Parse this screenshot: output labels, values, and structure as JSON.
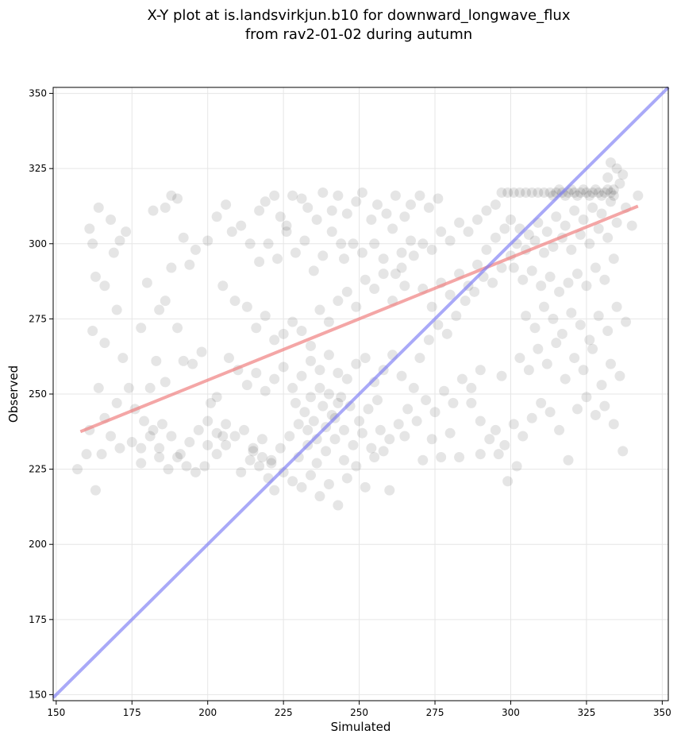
{
  "chart_data": {
    "type": "scatter",
    "title_line1": "X-Y plot at is.landsvirkjun.b10 for downward_longwave_flux",
    "title_line2": "from rav2-01-02 during autumn",
    "xlabel": "Simulated",
    "ylabel": "Observed",
    "xlim": [
      149,
      352
    ],
    "ylim": [
      148,
      352
    ],
    "xticks": [
      150,
      175,
      200,
      225,
      250,
      275,
      300,
      325,
      350
    ],
    "yticks": [
      150,
      175,
      200,
      225,
      250,
      275,
      300,
      325,
      350
    ],
    "grid": true,
    "point_color": "#000000",
    "regression_color": "#f08080",
    "identity_color": "#7b7bf5",
    "regression_line": {
      "x": [
        158,
        342
      ],
      "y": [
        237.5,
        312.5
      ]
    },
    "identity_line": {
      "x": [
        149,
        352
      ],
      "y": [
        149,
        352
      ]
    },
    "points": [
      [
        161,
        305
      ],
      [
        162,
        300
      ],
      [
        164,
        312
      ],
      [
        163,
        289
      ],
      [
        166,
        286
      ],
      [
        168,
        308
      ],
      [
        169,
        297
      ],
      [
        171,
        301
      ],
      [
        173,
        304
      ],
      [
        170,
        278
      ],
      [
        172,
        262
      ],
      [
        166,
        267
      ],
      [
        162,
        271
      ],
      [
        164,
        252
      ],
      [
        161,
        238
      ],
      [
        165,
        230
      ],
      [
        168,
        236
      ],
      [
        171,
        232
      ],
      [
        175,
        234
      ],
      [
        178,
        227
      ],
      [
        157,
        225
      ],
      [
        160,
        230
      ],
      [
        163,
        218
      ],
      [
        166,
        242
      ],
      [
        170,
        247
      ],
      [
        174,
        252
      ],
      [
        176,
        245
      ],
      [
        178,
        272
      ],
      [
        180,
        287
      ],
      [
        182,
        311
      ],
      [
        186,
        312
      ],
      [
        188,
        316
      ],
      [
        190,
        315
      ],
      [
        192,
        302
      ],
      [
        194,
        293
      ],
      [
        196,
        298
      ],
      [
        188,
        292
      ],
      [
        184,
        278
      ],
      [
        186,
        281
      ],
      [
        190,
        272
      ],
      [
        192,
        261
      ],
      [
        195,
        260
      ],
      [
        198,
        264
      ],
      [
        200,
        241
      ],
      [
        201,
        247
      ],
      [
        203,
        249
      ],
      [
        205,
        236
      ],
      [
        206,
        233
      ],
      [
        203,
        230
      ],
      [
        199,
        226
      ],
      [
        196,
        224
      ],
      [
        193,
        226
      ],
      [
        190,
        229
      ],
      [
        187,
        225
      ],
      [
        184,
        232
      ],
      [
        182,
        238
      ],
      [
        179,
        241
      ],
      [
        183,
        261
      ],
      [
        186,
        254
      ],
      [
        181,
        252
      ],
      [
        200,
        301
      ],
      [
        203,
        309
      ],
      [
        206,
        313
      ],
      [
        208,
        304
      ],
      [
        211,
        306
      ],
      [
        214,
        300
      ],
      [
        217,
        311
      ],
      [
        219,
        314
      ],
      [
        222,
        316
      ],
      [
        224,
        309
      ],
      [
        226,
        306
      ],
      [
        228,
        316
      ],
      [
        231,
        315
      ],
      [
        233,
        312
      ],
      [
        236,
        308
      ],
      [
        238,
        317
      ],
      [
        241,
        311
      ],
      [
        243,
        316
      ],
      [
        246,
        310
      ],
      [
        249,
        314
      ],
      [
        251,
        317
      ],
      [
        254,
        308
      ],
      [
        256,
        313
      ],
      [
        259,
        310
      ],
      [
        262,
        316
      ],
      [
        265,
        309
      ],
      [
        267,
        313
      ],
      [
        270,
        316
      ],
      [
        273,
        312
      ],
      [
        276,
        315
      ],
      [
        205,
        286
      ],
      [
        209,
        281
      ],
      [
        213,
        279
      ],
      [
        216,
        272
      ],
      [
        219,
        276
      ],
      [
        222,
        268
      ],
      [
        225,
        270
      ],
      [
        228,
        274
      ],
      [
        231,
        271
      ],
      [
        234,
        266
      ],
      [
        237,
        278
      ],
      [
        240,
        274
      ],
      [
        243,
        281
      ],
      [
        246,
        284
      ],
      [
        249,
        279
      ],
      [
        252,
        288
      ],
      [
        255,
        285
      ],
      [
        258,
        290
      ],
      [
        261,
        281
      ],
      [
        264,
        292
      ],
      [
        207,
        262
      ],
      [
        210,
        258
      ],
      [
        213,
        253
      ],
      [
        216,
        257
      ],
      [
        219,
        251
      ],
      [
        222,
        255
      ],
      [
        225,
        259
      ],
      [
        228,
        252
      ],
      [
        231,
        256
      ],
      [
        234,
        261
      ],
      [
        237,
        258
      ],
      [
        240,
        263
      ],
      [
        243,
        257
      ],
      [
        246,
        255
      ],
      [
        249,
        260
      ],
      [
        252,
        262
      ],
      [
        255,
        254
      ],
      [
        258,
        258
      ],
      [
        261,
        263
      ],
      [
        264,
        256
      ],
      [
        206,
        240
      ],
      [
        209,
        236
      ],
      [
        212,
        238
      ],
      [
        215,
        231
      ],
      [
        218,
        235
      ],
      [
        221,
        228
      ],
      [
        224,
        232
      ],
      [
        227,
        236
      ],
      [
        230,
        229
      ],
      [
        233,
        233
      ],
      [
        236,
        227
      ],
      [
        239,
        231
      ],
      [
        242,
        235
      ],
      [
        245,
        228
      ],
      [
        248,
        233
      ],
      [
        251,
        237
      ],
      [
        254,
        232
      ],
      [
        257,
        238
      ],
      [
        260,
        235
      ],
      [
        263,
        240
      ],
      [
        211,
        224
      ],
      [
        214,
        228
      ],
      [
        217,
        226
      ],
      [
        220,
        222
      ],
      [
        222,
        218
      ],
      [
        225,
        224
      ],
      [
        228,
        221
      ],
      [
        231,
        219
      ],
      [
        234,
        223
      ],
      [
        237,
        216
      ],
      [
        240,
        220
      ],
      [
        243,
        213
      ],
      [
        246,
        222
      ],
      [
        249,
        226
      ],
      [
        252,
        219
      ],
      [
        255,
        229
      ],
      [
        258,
        231
      ],
      [
        215,
        232
      ],
      [
        218,
        229
      ],
      [
        221,
        227
      ],
      [
        229,
        247
      ],
      [
        232,
        244
      ],
      [
        235,
        241
      ],
      [
        238,
        246
      ],
      [
        241,
        243
      ],
      [
        244,
        249
      ],
      [
        247,
        246
      ],
      [
        250,
        241
      ],
      [
        253,
        245
      ],
      [
        256,
        248
      ],
      [
        230,
        240
      ],
      [
        233,
        238
      ],
      [
        236,
        235
      ],
      [
        239,
        239
      ],
      [
        242,
        242
      ],
      [
        245,
        238
      ],
      [
        234,
        249
      ],
      [
        237,
        252
      ],
      [
        240,
        250
      ],
      [
        243,
        247
      ],
      [
        266,
        245
      ],
      [
        269,
        241
      ],
      [
        272,
        248
      ],
      [
        275,
        244
      ],
      [
        278,
        251
      ],
      [
        281,
        247
      ],
      [
        284,
        255
      ],
      [
        287,
        252
      ],
      [
        290,
        258
      ],
      [
        270,
        262
      ],
      [
        273,
        268
      ],
      [
        276,
        273
      ],
      [
        279,
        270
      ],
      [
        282,
        276
      ],
      [
        285,
        281
      ],
      [
        288,
        284
      ],
      [
        291,
        289
      ],
      [
        294,
        287
      ],
      [
        297,
        292
      ],
      [
        300,
        296
      ],
      [
        271,
        285
      ],
      [
        274,
        279
      ],
      [
        277,
        287
      ],
      [
        280,
        283
      ],
      [
        283,
        290
      ],
      [
        286,
        286
      ],
      [
        289,
        293
      ],
      [
        292,
        298
      ],
      [
        295,
        302
      ],
      [
        298,
        305
      ],
      [
        268,
        296
      ],
      [
        271,
        300
      ],
      [
        274,
        298
      ],
      [
        277,
        304
      ],
      [
        280,
        301
      ],
      [
        283,
        307
      ],
      [
        286,
        304
      ],
      [
        289,
        308
      ],
      [
        292,
        311
      ],
      [
        295,
        313
      ],
      [
        297,
        317
      ],
      [
        299,
        317
      ],
      [
        301,
        317
      ],
      [
        303,
        317
      ],
      [
        305,
        317
      ],
      [
        307,
        317
      ],
      [
        309,
        317
      ],
      [
        311,
        317
      ],
      [
        313,
        317
      ],
      [
        315,
        317
      ],
      [
        317,
        317
      ],
      [
        319,
        317
      ],
      [
        321,
        317
      ],
      [
        323,
        317
      ],
      [
        325,
        317
      ],
      [
        327,
        317
      ],
      [
        329,
        317
      ],
      [
        331,
        317
      ],
      [
        333,
        317
      ],
      [
        318,
        316
      ],
      [
        320,
        318
      ],
      [
        322,
        316
      ],
      [
        324,
        318
      ],
      [
        326,
        316
      ],
      [
        328,
        318
      ],
      [
        330,
        316
      ],
      [
        332,
        318
      ],
      [
        334,
        316
      ],
      [
        316,
        318
      ],
      [
        314,
        316
      ],
      [
        300,
        308
      ],
      [
        303,
        305
      ],
      [
        306,
        303
      ],
      [
        309,
        307
      ],
      [
        312,
        304
      ],
      [
        315,
        309
      ],
      [
        318,
        306
      ],
      [
        321,
        311
      ],
      [
        324,
        308
      ],
      [
        327,
        312
      ],
      [
        330,
        310
      ],
      [
        333,
        314
      ],
      [
        302,
        300
      ],
      [
        305,
        298
      ],
      [
        308,
        301
      ],
      [
        311,
        297
      ],
      [
        314,
        299
      ],
      [
        317,
        302
      ],
      [
        320,
        298
      ],
      [
        323,
        303
      ],
      [
        326,
        300
      ],
      [
        329,
        305
      ],
      [
        332,
        302
      ],
      [
        335,
        307
      ],
      [
        301,
        292
      ],
      [
        304,
        288
      ],
      [
        307,
        291
      ],
      [
        310,
        286
      ],
      [
        313,
        289
      ],
      [
        316,
        284
      ],
      [
        319,
        287
      ],
      [
        322,
        290
      ],
      [
        325,
        286
      ],
      [
        328,
        292
      ],
      [
        331,
        288
      ],
      [
        334,
        295
      ],
      [
        305,
        276
      ],
      [
        308,
        272
      ],
      [
        311,
        279
      ],
      [
        314,
        275
      ],
      [
        317,
        270
      ],
      [
        320,
        277
      ],
      [
        323,
        273
      ],
      [
        326,
        268
      ],
      [
        329,
        276
      ],
      [
        332,
        271
      ],
      [
        335,
        279
      ],
      [
        338,
        274
      ],
      [
        303,
        262
      ],
      [
        306,
        258
      ],
      [
        309,
        265
      ],
      [
        312,
        260
      ],
      [
        315,
        267
      ],
      [
        318,
        255
      ],
      [
        321,
        262
      ],
      [
        324,
        258
      ],
      [
        327,
        265
      ],
      [
        330,
        253
      ],
      [
        333,
        260
      ],
      [
        336,
        256
      ],
      [
        295,
        238
      ],
      [
        298,
        233
      ],
      [
        301,
        240
      ],
      [
        304,
        236
      ],
      [
        307,
        242
      ],
      [
        310,
        247
      ],
      [
        313,
        244
      ],
      [
        316,
        238
      ],
      [
        319,
        228
      ],
      [
        322,
        245
      ],
      [
        325,
        249
      ],
      [
        328,
        243
      ],
      [
        331,
        246
      ],
      [
        334,
        240
      ],
      [
        337,
        231
      ],
      [
        340,
        306
      ],
      [
        342,
        316
      ],
      [
        338,
        312
      ],
      [
        335,
        325
      ],
      [
        333,
        327
      ],
      [
        336,
        320
      ],
      [
        334,
        318
      ],
      [
        332,
        322
      ],
      [
        337,
        323
      ],
      [
        296,
        230
      ],
      [
        299,
        221
      ],
      [
        302,
        226
      ],
      [
        293,
        235
      ],
      [
        290,
        230
      ],
      [
        297,
        256
      ],
      [
        260,
        218
      ],
      [
        265,
        236
      ],
      [
        268,
        252
      ],
      [
        271,
        228
      ],
      [
        274,
        235
      ],
      [
        277,
        229
      ],
      [
        280,
        237
      ],
      [
        283,
        229
      ],
      [
        287,
        247
      ],
      [
        290,
        241
      ],
      [
        255,
        300
      ],
      [
        258,
        295
      ],
      [
        261,
        305
      ],
      [
        264,
        297
      ],
      [
        267,
        301
      ],
      [
        262,
        290
      ],
      [
        265,
        286
      ],
      [
        245,
        295
      ],
      [
        248,
        300
      ],
      [
        251,
        297
      ],
      [
        241,
        304
      ],
      [
        244,
        300
      ],
      [
        238,
        296
      ],
      [
        235,
        291
      ],
      [
        232,
        301
      ],
      [
        229,
        297
      ],
      [
        226,
        304
      ],
      [
        223,
        295
      ],
      [
        220,
        300
      ],
      [
        217,
        294
      ],
      [
        185,
        240
      ],
      [
        188,
        236
      ],
      [
        191,
        230
      ],
      [
        194,
        234
      ],
      [
        197,
        238
      ],
      [
        200,
        233
      ],
      [
        203,
        237
      ],
      [
        178,
        232
      ],
      [
        181,
        236
      ],
      [
        184,
        229
      ]
    ]
  }
}
